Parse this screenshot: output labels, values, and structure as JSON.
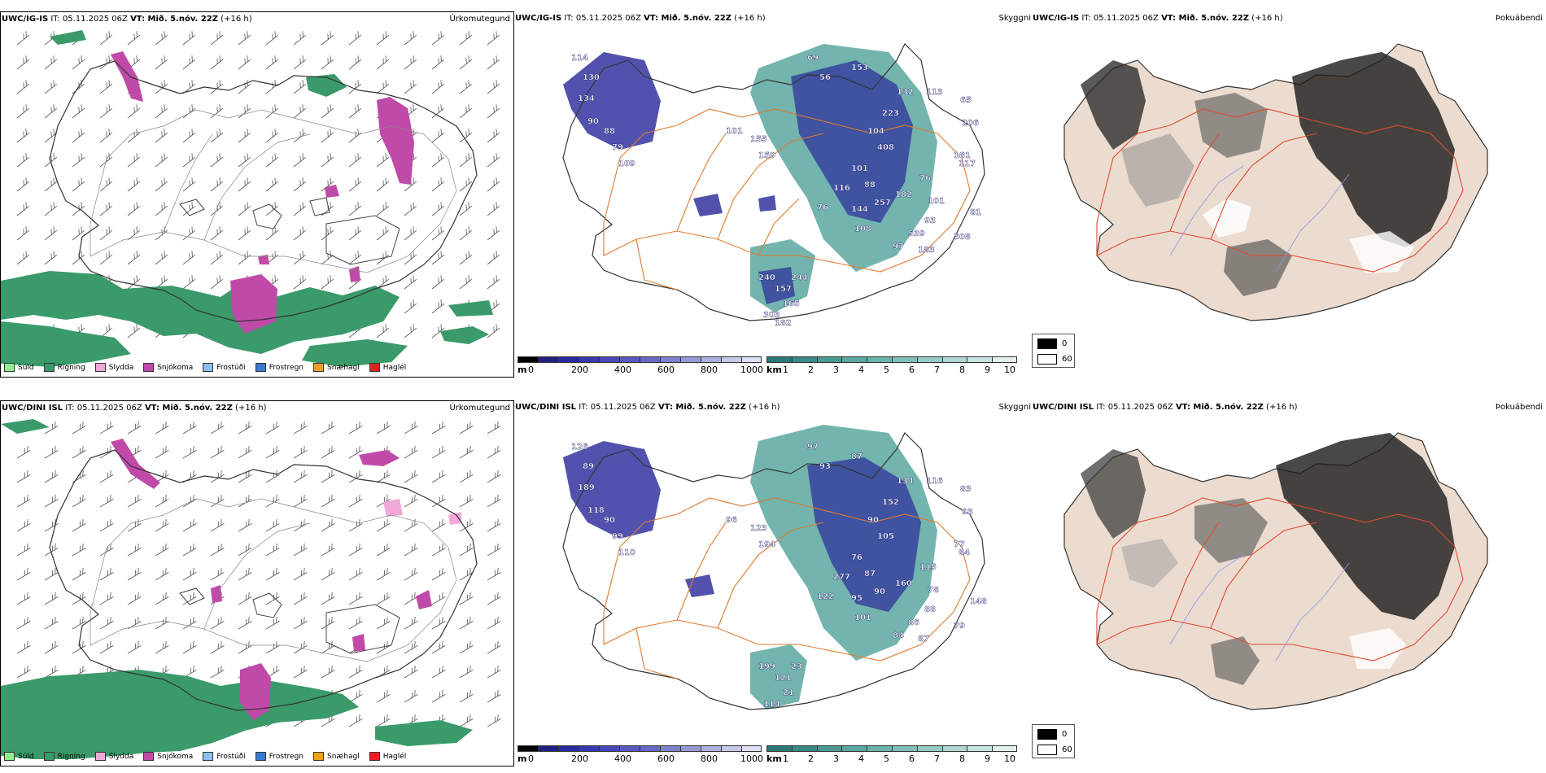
{
  "rows": [
    {
      "model": "UWC/IG-IS",
      "init_label": "IT: 05.11.2025 06Z",
      "valid_label": "VT: Mið. 5.nóv. 22Z",
      "lead": "(+16 h)",
      "precip_title": "Úrkomutegund",
      "cloud_title": "Skyggni",
      "fog_title": "Þokuábendi",
      "snow_labels": [
        "114",
        "130",
        "134",
        "90",
        "88",
        "79",
        "109",
        "101",
        "155",
        "150",
        "69",
        "56",
        "153",
        "132",
        "113",
        "223",
        "104",
        "206",
        "181",
        "65",
        "101",
        "88",
        "408",
        "182",
        "76",
        "101",
        "93",
        "539",
        "257",
        "108",
        "97",
        "183",
        "508",
        "81",
        "117",
        "116",
        "76",
        "144",
        "240",
        "157",
        "244",
        "165",
        "303",
        "182"
      ]
    },
    {
      "model": "UWC/DINI ISL",
      "init_label": "IT: 05.11.2025 06Z",
      "valid_label": "VT: Mið. 5.nóv. 22Z",
      "lead": "(+16 h)",
      "precip_title": "Úrkomutegund",
      "cloud_title": "Skyggni",
      "fog_title": "Þokuábendi",
      "snow_labels": [
        "126",
        "89",
        "189",
        "118",
        "90",
        "99",
        "110",
        "96",
        "123",
        "194",
        "97",
        "93",
        "87",
        "134",
        "116",
        "152",
        "90",
        "93",
        "77",
        "83",
        "76",
        "87",
        "105",
        "160",
        "115",
        "78",
        "88",
        "86",
        "90",
        "101",
        "84",
        "87",
        "79",
        "148",
        "84",
        "277",
        "122",
        "95",
        "199",
        "121",
        "23",
        "21",
        "114"
      ]
    }
  ],
  "precip_legend": [
    {
      "label": "Súld",
      "color": "#90ee90"
    },
    {
      "label": "Rigning",
      "color": "#3a9a6a"
    },
    {
      "label": "Slydda",
      "color": "#f0a8d8"
    },
    {
      "label": "Snjókoma",
      "color": "#c04aa8"
    },
    {
      "label": "Frostúði",
      "color": "#8cc0ee"
    },
    {
      "label": "Frostregn",
      "color": "#3a7ad0"
    },
    {
      "label": "Snæhagl",
      "color": "#f0a020"
    },
    {
      "label": "Haglél",
      "color": "#e82020"
    }
  ],
  "depth_bar": {
    "unit": "m",
    "ticks": [
      "0",
      "200",
      "400",
      "600",
      "800",
      "1000"
    ],
    "colors": [
      "#000000",
      "#202080",
      "#2a2aa0",
      "#3838b0",
      "#4848b8",
      "#5858c0",
      "#6868c8",
      "#8080d0",
      "#9898d8",
      "#b0b0e0",
      "#c8c8ea",
      "#e0e0f4"
    ]
  },
  "height_bar": {
    "unit": "km",
    "ticks": [
      "1",
      "2",
      "3",
      "4",
      "5",
      "6",
      "7",
      "8",
      "9",
      "10"
    ],
    "colors": [
      "#2a7a7a",
      "#3a8a88",
      "#4a9a94",
      "#5aa8a0",
      "#6ab4ac",
      "#7ec0b8",
      "#94ccc4",
      "#aed8d0",
      "#c8e4de",
      "#e4f0ee"
    ]
  },
  "cloud_legend": {
    "black_label": "0",
    "white_label": "60"
  },
  "colors": {
    "rain": "#3a9a6a",
    "snow": "#c04aa8",
    "sleet": "#f0a8d8",
    "coast": "#333333",
    "road": "#e07a30",
    "fogroad": "#e04a30",
    "blue_river": "#8896e8"
  }
}
